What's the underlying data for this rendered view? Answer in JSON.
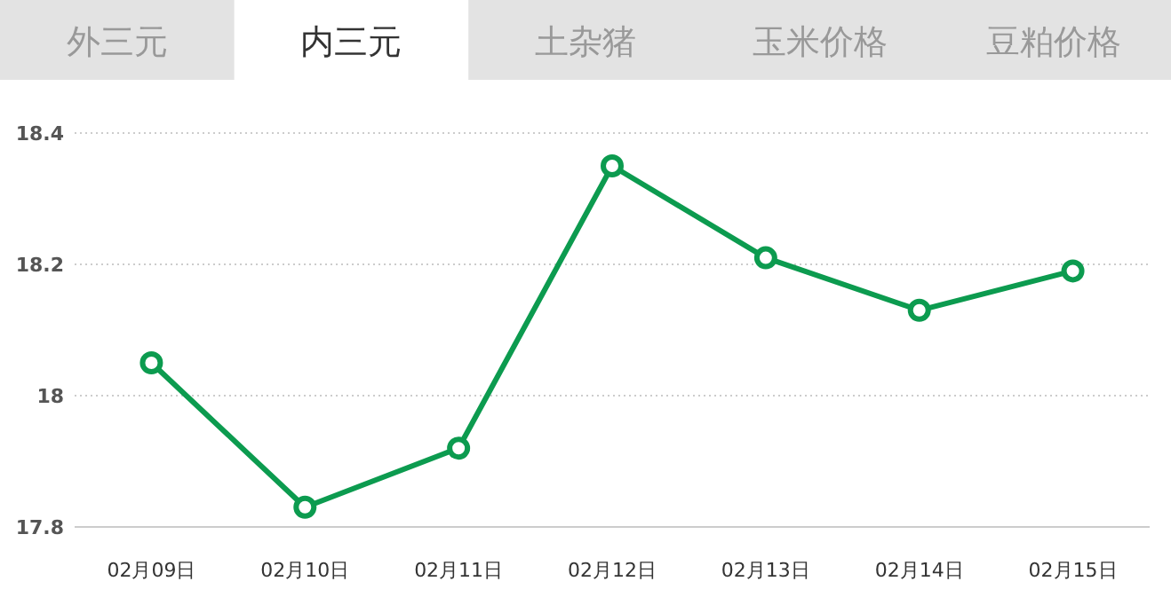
{
  "chart_data": {
    "type": "line",
    "annotations": [
      "外三元",
      "内三元",
      "土杂猪",
      "玉米价格",
      "豆粕价格"
    ],
    "categories": [
      "02月09日",
      "02月10日",
      "02月11日",
      "02月12日",
      "02月13日",
      "02月14日",
      "02月15日"
    ],
    "series": [
      {
        "color": "#0c9b4f",
        "values": [
          18.05,
          17.83,
          17.92,
          18.35,
          18.21,
          18.13,
          18.19
        ]
      }
    ],
    "ylim": [
      17.8,
      18.4
    ],
    "yticks": [
      17.8,
      18,
      18.2,
      18.4
    ],
    "grid": "y",
    "marker": "circle",
    "line_style": "solid"
  }
}
